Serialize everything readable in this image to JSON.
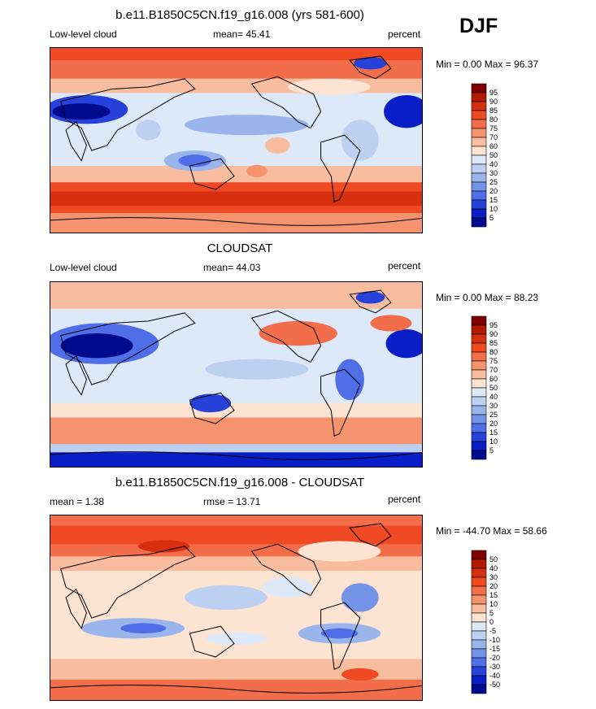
{
  "season": "DJF",
  "panels": [
    {
      "title": "b.e11.B1850C5CN.f19_g16.008 (yrs 581-600)",
      "left_label": "Low-level cloud",
      "center_label": "mean=  45.41",
      "right_label": "percent",
      "minmax": "Min =   0.00 Max =  96.37",
      "colorbar": {
        "levels": [
          "95",
          "90",
          "85",
          "80",
          "75",
          "70",
          "60",
          "50",
          "40",
          "30",
          "25",
          "20",
          "15",
          "10",
          "5"
        ]
      }
    },
    {
      "title": "CLOUDSAT",
      "left_label": "Low-level cloud",
      "center_label": "mean=  44.03",
      "right_label": "percent",
      "minmax": "Min =   0.00 Max =  88.23",
      "colorbar": {
        "levels": [
          "95",
          "90",
          "85",
          "80",
          "75",
          "70",
          "60",
          "50",
          "40",
          "30",
          "25",
          "20",
          "15",
          "10",
          "5"
        ]
      }
    },
    {
      "title": "b.e11.B1850C5CN.f19_g16.008 - CLOUDSAT",
      "left_label": "mean =   1.38",
      "center_label": "rmse =  13.71",
      "right_label": "percent",
      "minmax": "Min = -44.70 Max =  58.66",
      "colorbar": {
        "levels": [
          "50",
          "40",
          "30",
          "20",
          "15",
          "10",
          "5",
          "0",
          "-5",
          "-10",
          "-15",
          "-20",
          "-30",
          "-40",
          "-50"
        ]
      }
    }
  ],
  "colors": {
    "palette": [
      "#7f0000",
      "#b31b00",
      "#d73010",
      "#ef4a23",
      "#f26d4a",
      "#f5936f",
      "#f8bc9e",
      "#fde4d2",
      "#dde8f8",
      "#bdd0f2",
      "#99b5ec",
      "#7593e6",
      "#4f6ee8",
      "#2742da",
      "#0a1ec8",
      "#000a8c"
    ]
  }
}
